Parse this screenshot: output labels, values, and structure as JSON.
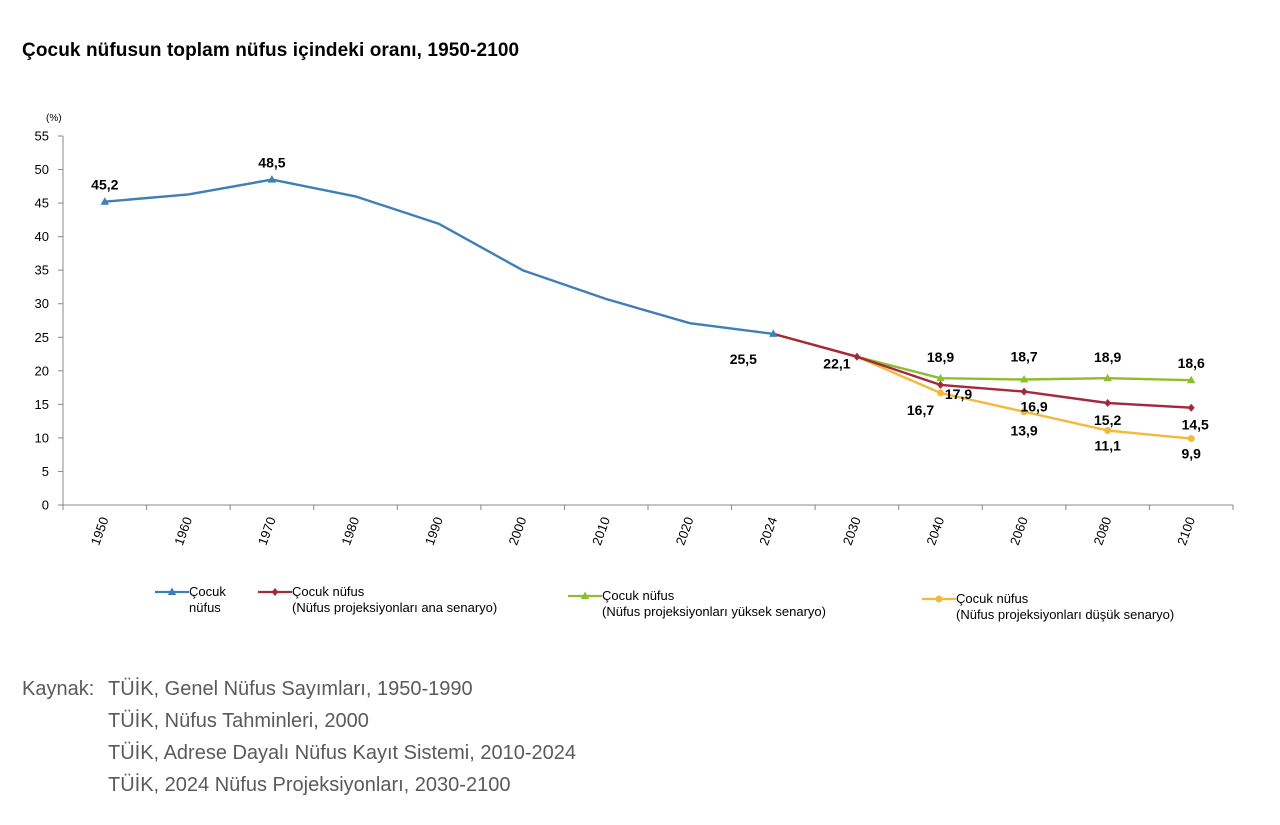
{
  "title": "Çocuk nüfusun toplam nüfus içindeki oranı, 1950-2100",
  "source": {
    "prefix": "Kaynak:",
    "lines": [
      "TÜİK, Genel Nüfus Sayımları, 1950-1990",
      "TÜİK, Nüfus Tahminleri, 2000",
      "TÜİK, Adrese Dayalı Nüfus Kayıt Sistemi, 2010-2024",
      "TÜİK, 2024 Nüfus Projeksiyonları, 2030-2100"
    ]
  },
  "chart_data": {
    "type": "line",
    "title": "Çocuk nüfusun toplam nüfus içindeki oranı, 1950-2100",
    "unit_label": "(%)",
    "categories": [
      "1950",
      "1960",
      "1970",
      "1980",
      "1990",
      "2000",
      "2010",
      "2020",
      "2024",
      "2030",
      "2040",
      "2060",
      "2080",
      "2100"
    ],
    "ylim": [
      0,
      55
    ],
    "yticks": [
      0,
      5,
      10,
      15,
      20,
      25,
      30,
      35,
      40,
      45,
      50,
      55
    ],
    "grid": false,
    "series": [
      {
        "name": "Çocuk nüfus",
        "legend_lines": [
          "Çocuk",
          "nüfus"
        ],
        "color": "#3f7fb5",
        "marker": "triangle",
        "values": [
          45.2,
          46.3,
          48.5,
          46.0,
          41.9,
          35.0,
          30.7,
          27.1,
          25.5,
          null,
          null,
          null,
          null,
          null
        ],
        "labels": {
          "0": "45,2",
          "2": "48,5",
          "8": "25,5"
        }
      },
      {
        "name": "Çocuk nüfus (Nüfus projeksiyonları ana senaryo)",
        "legend_lines": [
          "Çocuk nüfus",
          "(Nüfus projeksiyonları ana senaryo)"
        ],
        "color": "#a32a3e",
        "marker": "diamond",
        "values": [
          null,
          null,
          null,
          null,
          null,
          null,
          null,
          null,
          25.5,
          22.1,
          17.9,
          16.9,
          15.2,
          14.5
        ],
        "labels": {
          "9": "22,1",
          "10": "17,9",
          "11": "16,9",
          "12": "15,2",
          "13": "14,5"
        }
      },
      {
        "name": "Çocuk nüfus (Nüfus projeksiyonları yüksek senaryo)",
        "legend_lines": [
          "Çocuk nüfus",
          "(Nüfus projeksiyonları yüksek senaryo)"
        ],
        "color": "#8cbe2e",
        "marker": "triangle",
        "values": [
          null,
          null,
          null,
          null,
          null,
          null,
          null,
          null,
          25.5,
          22.1,
          18.9,
          18.7,
          18.9,
          18.6
        ],
        "labels": {
          "10": "18,9",
          "11": "18,7",
          "12": "18,9",
          "13": "18,6"
        }
      },
      {
        "name": "Çocuk nüfus (Nüfus projeksiyonları düşük senaryo)",
        "legend_lines": [
          "Çocuk nüfus",
          "(Nüfus projeksiyonları düşük senaryo)"
        ],
        "color": "#f2b93b",
        "marker": "circle",
        "values": [
          null,
          null,
          null,
          null,
          null,
          null,
          null,
          null,
          25.5,
          22.1,
          16.7,
          13.9,
          11.1,
          9.9
        ],
        "labels": {
          "10": "16,7",
          "11": "13,9",
          "12": "11,1",
          "13": "9,9"
        }
      }
    ]
  }
}
